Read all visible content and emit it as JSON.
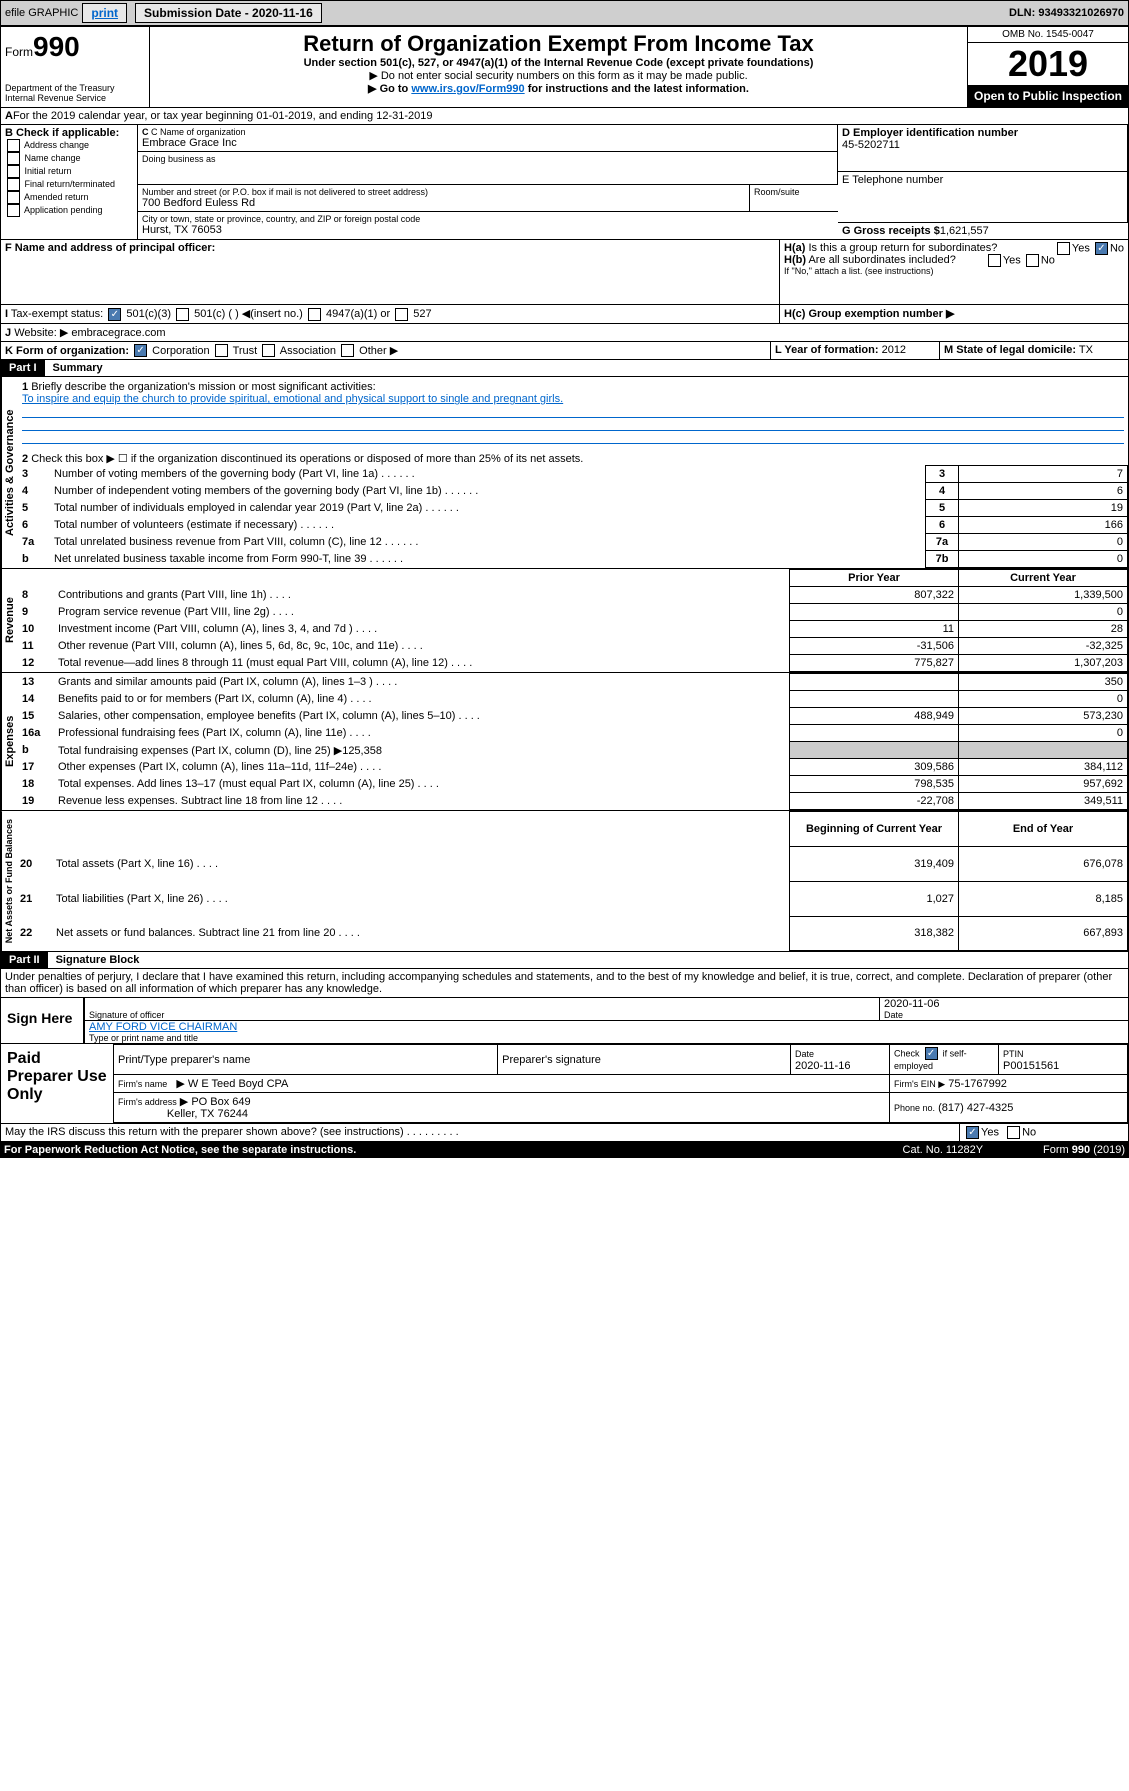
{
  "topbar": {
    "efile_label": "efile GRAPHIC",
    "print_btn": "print",
    "sub_date_label": "Submission Date - 2020-11-16",
    "dln": "DLN: 93493321026970"
  },
  "header": {
    "form_prefix": "Form",
    "form_number": "990",
    "dept": "Department of the Treasury Internal Revenue Service",
    "title": "Return of Organization Exempt From Income Tax",
    "subtitle": "Under section 501(c), 527, or 4947(a)(1) of the Internal Revenue Code (except private foundations)",
    "note1": "▶ Do not enter social security numbers on this form as it may be made public.",
    "note2_pre": "▶ Go to ",
    "note2_link": "www.irs.gov/Form990",
    "note2_post": " for instructions and the latest information.",
    "omb": "OMB No. 1545-0047",
    "year": "2019",
    "open": "Open to Public Inspection"
  },
  "period": {
    "line_a": "For the 2019 calendar year, or tax year beginning 01-01-2019",
    "line_a2": ", and ending 12-31-2019"
  },
  "box_b": {
    "label": "B Check if applicable:",
    "opts": [
      "Address change",
      "Name change",
      "Initial return",
      "Final return/terminated",
      "Amended return",
      "Application pending"
    ]
  },
  "box_c": {
    "name_lbl": "C Name of organization",
    "name": "Embrace Grace Inc",
    "dba_lbl": "Doing business as",
    "addr_lbl": "Number and street (or P.O. box if mail is not delivered to street address)",
    "addr": "700 Bedford Euless Rd",
    "room_lbl": "Room/suite",
    "city_lbl": "City or town, state or province, country, and ZIP or foreign postal code",
    "city": "Hurst, TX  76053"
  },
  "box_d": {
    "lbl": "D Employer identification number",
    "val": "45-5202711"
  },
  "box_e": {
    "lbl": "E Telephone number"
  },
  "box_f": {
    "lbl": "F Name and address of principal officer:"
  },
  "box_g": {
    "lbl": "G Gross receipts $",
    "val": "1,621,557"
  },
  "box_h": {
    "a": "H(a)  Is this a group return for subordinates?",
    "b": "H(b)  Are all subordinates included?",
    "b_note": "If \"No,\" attach a list. (see instructions)",
    "c": "H(c)  Group exemption number ▶",
    "yes": "Yes",
    "no": "No"
  },
  "box_i": {
    "lbl": "I",
    "txt": "Tax-exempt status:",
    "o1": "501(c)(3)",
    "o2": "501(c) (  ) ◀(insert no.)",
    "o3": "4947(a)(1) or",
    "o4": "527"
  },
  "box_j": {
    "lbl": "J",
    "txt": "Website: ▶",
    "val": "embracegrace.com"
  },
  "box_k": {
    "lbl": "K Form of organization:",
    "o1": "Corporation",
    "o2": "Trust",
    "o3": "Association",
    "o4": "Other ▶"
  },
  "box_l": {
    "lbl": "L Year of formation:",
    "val": "2012"
  },
  "box_m": {
    "lbl": "M State of legal domicile:",
    "val": "TX"
  },
  "part1": {
    "hdr": "Part I",
    "title": "Summary"
  },
  "summary": {
    "q1": "Briefly describe the organization's mission or most significant activities:",
    "q1_ans": "To inspire and equip the church to provide spiritual, emotional and physical support to single and pregnant girls.",
    "q2": "Check this box ▶ ☐  if the organization discontinued its operations or disposed of more than 25% of its net assets.",
    "rows": [
      {
        "n": "3",
        "t": "Number of voting members of the governing body (Part VI, line 1a)",
        "l": "3",
        "v": "7"
      },
      {
        "n": "4",
        "t": "Number of independent voting members of the governing body (Part VI, line 1b)",
        "l": "4",
        "v": "6"
      },
      {
        "n": "5",
        "t": "Total number of individuals employed in calendar year 2019 (Part V, line 2a)",
        "l": "5",
        "v": "19"
      },
      {
        "n": "6",
        "t": "Total number of volunteers (estimate if necessary)",
        "l": "6",
        "v": "166"
      },
      {
        "n": "7a",
        "t": "Total unrelated business revenue from Part VIII, column (C), line 12",
        "l": "7a",
        "v": "0"
      },
      {
        "n": "b",
        "t": "Net unrelated business taxable income from Form 990-T, line 39",
        "l": "7b",
        "v": "0"
      }
    ],
    "col_prior": "Prior Year",
    "col_curr": "Current Year",
    "rev": [
      {
        "n": "8",
        "t": "Contributions and grants (Part VIII, line 1h)",
        "p": "807,322",
        "c": "1,339,500"
      },
      {
        "n": "9",
        "t": "Program service revenue (Part VIII, line 2g)",
        "p": "",
        "c": "0"
      },
      {
        "n": "10",
        "t": "Investment income (Part VIII, column (A), lines 3, 4, and 7d )",
        "p": "11",
        "c": "28"
      },
      {
        "n": "11",
        "t": "Other revenue (Part VIII, column (A), lines 5, 6d, 8c, 9c, 10c, and 11e)",
        "p": "-31,506",
        "c": "-32,325"
      },
      {
        "n": "12",
        "t": "Total revenue—add lines 8 through 11 (must equal Part VIII, column (A), line 12)",
        "p": "775,827",
        "c": "1,307,203"
      }
    ],
    "exp": [
      {
        "n": "13",
        "t": "Grants and similar amounts paid (Part IX, column (A), lines 1–3 )",
        "p": "",
        "c": "350"
      },
      {
        "n": "14",
        "t": "Benefits paid to or for members (Part IX, column (A), line 4)",
        "p": "",
        "c": "0"
      },
      {
        "n": "15",
        "t": "Salaries, other compensation, employee benefits (Part IX, column (A), lines 5–10)",
        "p": "488,949",
        "c": "573,230"
      },
      {
        "n": "16a",
        "t": "Professional fundraising fees (Part IX, column (A), line 11e)",
        "p": "",
        "c": "0"
      },
      {
        "n": "b",
        "t": "Total fundraising expenses (Part IX, column (D), line 25) ▶125,358",
        "p": null,
        "c": null
      },
      {
        "n": "17",
        "t": "Other expenses (Part IX, column (A), lines 11a–11d, 11f–24e)",
        "p": "309,586",
        "c": "384,112"
      },
      {
        "n": "18",
        "t": "Total expenses. Add lines 13–17 (must equal Part IX, column (A), line 25)",
        "p": "798,535",
        "c": "957,692"
      },
      {
        "n": "19",
        "t": "Revenue less expenses. Subtract line 18 from line 12",
        "p": "-22,708",
        "c": "349,511"
      }
    ],
    "col_beg": "Beginning of Current Year",
    "col_end": "End of Year",
    "net": [
      {
        "n": "20",
        "t": "Total assets (Part X, line 16)",
        "p": "319,409",
        "c": "676,078"
      },
      {
        "n": "21",
        "t": "Total liabilities (Part X, line 26)",
        "p": "1,027",
        "c": "8,185"
      },
      {
        "n": "22",
        "t": "Net assets or fund balances. Subtract line 21 from line 20",
        "p": "318,382",
        "c": "667,893"
      }
    ]
  },
  "part2": {
    "hdr": "Part II",
    "title": "Signature Block",
    "decl": "Under penalties of perjury, I declare that I have examined this return, including accompanying schedules and statements, and to the best of my knowledge and belief, it is true, correct, and complete. Declaration of preparer (other than officer) is based on all information of which preparer has any knowledge."
  },
  "sign": {
    "here": "Sign Here",
    "sig_lbl": "Signature of officer",
    "date": "2020-11-06",
    "date_lbl": "Date",
    "name": "AMY FORD  VICE CHAIRMAN",
    "name_lbl": "Type or print name and title"
  },
  "paid": {
    "lbl": "Paid Preparer Use Only",
    "c1": "Print/Type preparer's name",
    "c2": "Preparer's signature",
    "c3": "Date",
    "c3v": "2020-11-16",
    "c4_pre": "Check",
    "c4": "if self-employed",
    "c5": "PTIN",
    "c5v": "P00151561",
    "firm_lbl": "Firm's name",
    "firm": "▶ W E Teed Boyd CPA",
    "ein_lbl": "Firm's EIN ▶",
    "ein": "75-1767992",
    "addr_lbl": "Firm's address",
    "addr1": "▶ PO Box 649",
    "addr2": "Keller, TX  76244",
    "phone_lbl": "Phone no.",
    "phone": "(817) 427-4325"
  },
  "footer": {
    "discuss": "May the IRS discuss this return with the preparer shown above? (see instructions)",
    "yes": "Yes",
    "no": "No",
    "pra": "For Paperwork Reduction Act Notice, see the separate instructions.",
    "cat": "Cat. No. 11282Y",
    "form": "Form 990 (2019)"
  },
  "vert": {
    "ag": "Activities & Governance",
    "rev": "Revenue",
    "exp": "Expenses",
    "net": "Net Assets or Fund Balances"
  }
}
